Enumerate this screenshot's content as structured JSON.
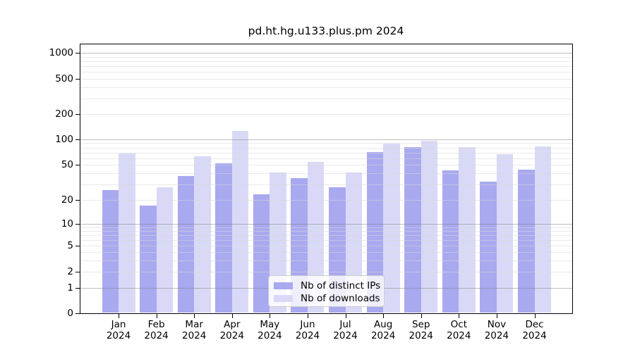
{
  "chart_data": {
    "type": "bar",
    "title": "pd.ht.hg.u133.plus.pm 2024",
    "categories": [
      "Jan",
      "Feb",
      "Mar",
      "Apr",
      "May",
      "Jun",
      "Jul",
      "Aug",
      "Sep",
      "Oct",
      "Nov",
      "Dec"
    ],
    "x_year_label": "2024",
    "series": [
      {
        "name": "Nb of distinct IPs",
        "color": "#a9a9f0",
        "values": [
          26,
          17,
          37,
          52,
          23,
          35,
          28,
          71,
          81,
          43,
          32,
          44
        ]
      },
      {
        "name": "Nb of downloads",
        "color": "#d9d9f7",
        "values": [
          68,
          28,
          63,
          127,
          41,
          54,
          41,
          89,
          96,
          81,
          67,
          82
        ]
      }
    ],
    "yticks": [
      0,
      1,
      2,
      5,
      10,
      20,
      50,
      100,
      200,
      500,
      1000
    ],
    "ylim": [
      0,
      1300
    ],
    "yscale": "log-like with linear segment below 1",
    "grid": "horizontal major and minor gridlines, drawn over bars",
    "legend_position": "lower center inside plot"
  }
}
